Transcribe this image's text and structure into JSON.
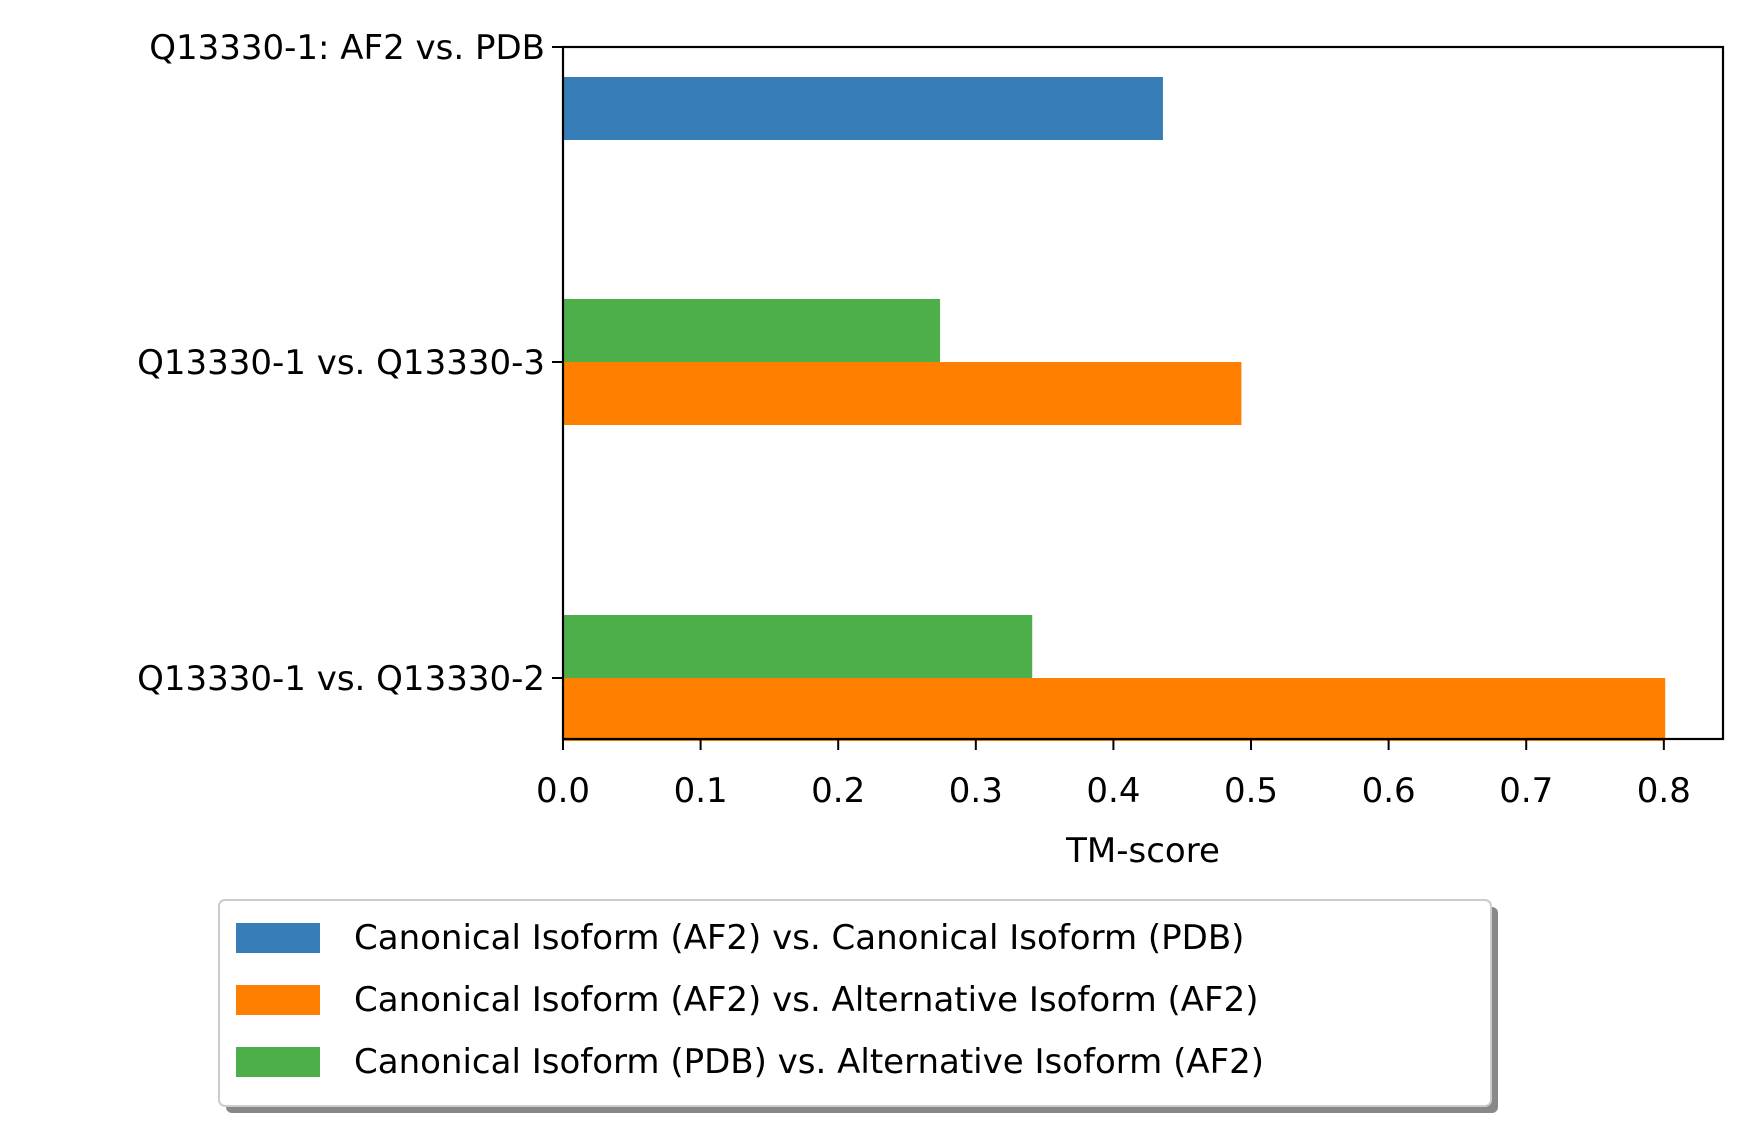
{
  "chart_data": {
    "type": "bar",
    "orientation": "horizontal",
    "categories": [
      "Q13330-1 vs. Q13330-2",
      "Q13330-1 vs. Q13330-3",
      "Q13330-1: AF2 vs. PDB"
    ],
    "series": [
      {
        "name": "Canonical Isoform (AF2) vs. Canonical Isoform (PDB)",
        "color": "#377eb8",
        "values": [
          null,
          null,
          0.436
        ]
      },
      {
        "name": "Canonical Isoform (AF2) vs. Alternative Isoform (AF2)",
        "color": "#ff7f00",
        "values": [
          0.801,
          0.493,
          null
        ]
      },
      {
        "name": "Canonical Isoform (PDB) vs. Alternative Isoform (AF2)",
        "color": "#4daf4a",
        "values": [
          0.341,
          0.274,
          null
        ]
      }
    ],
    "xlabel": "TM-score",
    "ylabel": "",
    "xlim": [
      0,
      0.843
    ],
    "xticks": [
      "0.0",
      "0.1",
      "0.2",
      "0.3",
      "0.4",
      "0.5",
      "0.6",
      "0.7",
      "0.8"
    ],
    "grid": false,
    "legend_placement": "bottom-center, below plot"
  }
}
